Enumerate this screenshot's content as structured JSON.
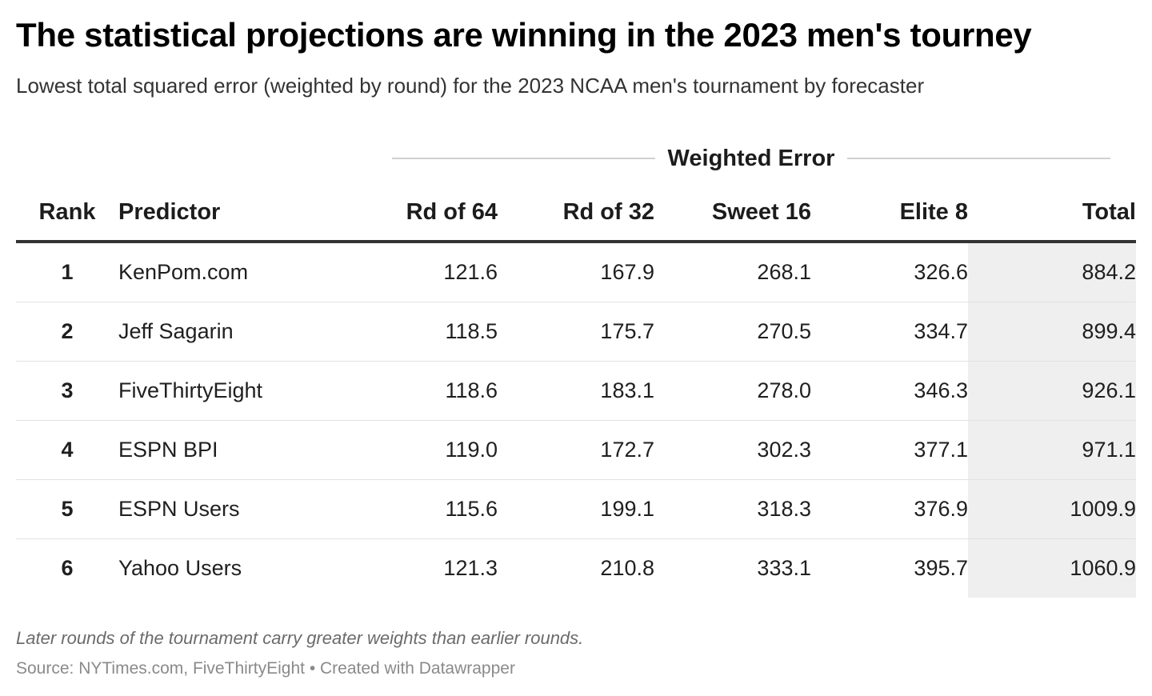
{
  "header": {
    "title": "The statistical projections are winning in the 2023 men's tourney",
    "subtitle": "Lowest total squared error (weighted by round) for the 2023 NCAA men's tournament by forecaster"
  },
  "spanner": {
    "label": "Weighted Error"
  },
  "table": {
    "columns": [
      "Rank",
      "Predictor",
      "Rd of 64",
      "Rd of 32",
      "Sweet 16",
      "Elite 8",
      "Total"
    ],
    "rows": [
      [
        "1",
        "KenPom.com",
        "121.6",
        "167.9",
        "268.1",
        "326.6",
        "884.2"
      ],
      [
        "2",
        "Jeff Sagarin",
        "118.5",
        "175.7",
        "270.5",
        "334.7",
        "899.4"
      ],
      [
        "3",
        "FiveThirtyEight",
        "118.6",
        "183.1",
        "278.0",
        "346.3",
        "926.1"
      ],
      [
        "4",
        "ESPN BPI",
        "119.0",
        "172.7",
        "302.3",
        "377.1",
        "971.1"
      ],
      [
        "5",
        "ESPN Users",
        "115.6",
        "199.1",
        "318.3",
        "376.9",
        "1009.9"
      ],
      [
        "6",
        "Yahoo Users",
        "121.3",
        "210.8",
        "333.1",
        "395.7",
        "1060.9"
      ]
    ]
  },
  "chart_data": {
    "type": "table",
    "title": "The statistical projections are winning in the 2023 men's tourney",
    "subtitle": "Lowest total squared error (weighted by round) for the 2023 NCAA men's tournament by forecaster",
    "column_group": "Weighted Error",
    "columns": [
      "Rank",
      "Predictor",
      "Rd of 64",
      "Rd of 32",
      "Sweet 16",
      "Elite 8",
      "Total"
    ],
    "rows": [
      {
        "rank": 1,
        "predictor": "KenPom.com",
        "rd_of_64": 121.6,
        "rd_of_32": 167.9,
        "sweet_16": 268.1,
        "elite_8": 326.6,
        "total": 884.2
      },
      {
        "rank": 2,
        "predictor": "Jeff Sagarin",
        "rd_of_64": 118.5,
        "rd_of_32": 175.7,
        "sweet_16": 270.5,
        "elite_8": 334.7,
        "total": 899.4
      },
      {
        "rank": 3,
        "predictor": "FiveThirtyEight",
        "rd_of_64": 118.6,
        "rd_of_32": 183.1,
        "sweet_16": 278.0,
        "elite_8": 346.3,
        "total": 926.1
      },
      {
        "rank": 4,
        "predictor": "ESPN BPI",
        "rd_of_64": 119.0,
        "rd_of_32": 172.7,
        "sweet_16": 302.3,
        "elite_8": 377.1,
        "total": 971.1
      },
      {
        "rank": 5,
        "predictor": "ESPN Users",
        "rd_of_64": 115.6,
        "rd_of_32": 199.1,
        "sweet_16": 318.3,
        "elite_8": 376.9,
        "total": 1009.9
      },
      {
        "rank": 6,
        "predictor": "Yahoo Users",
        "rd_of_64": 121.3,
        "rd_of_32": 210.8,
        "sweet_16": 333.1,
        "elite_8": 395.7,
        "total": 1060.9
      }
    ],
    "highlight_column": "Total",
    "highlight_color": "#efefef"
  },
  "footer": {
    "notes": "Later rounds of the tournament carry greater weights than earlier rounds.",
    "source": "Source: NYTimes.com, FiveThirtyEight • Created with Datawrapper"
  }
}
